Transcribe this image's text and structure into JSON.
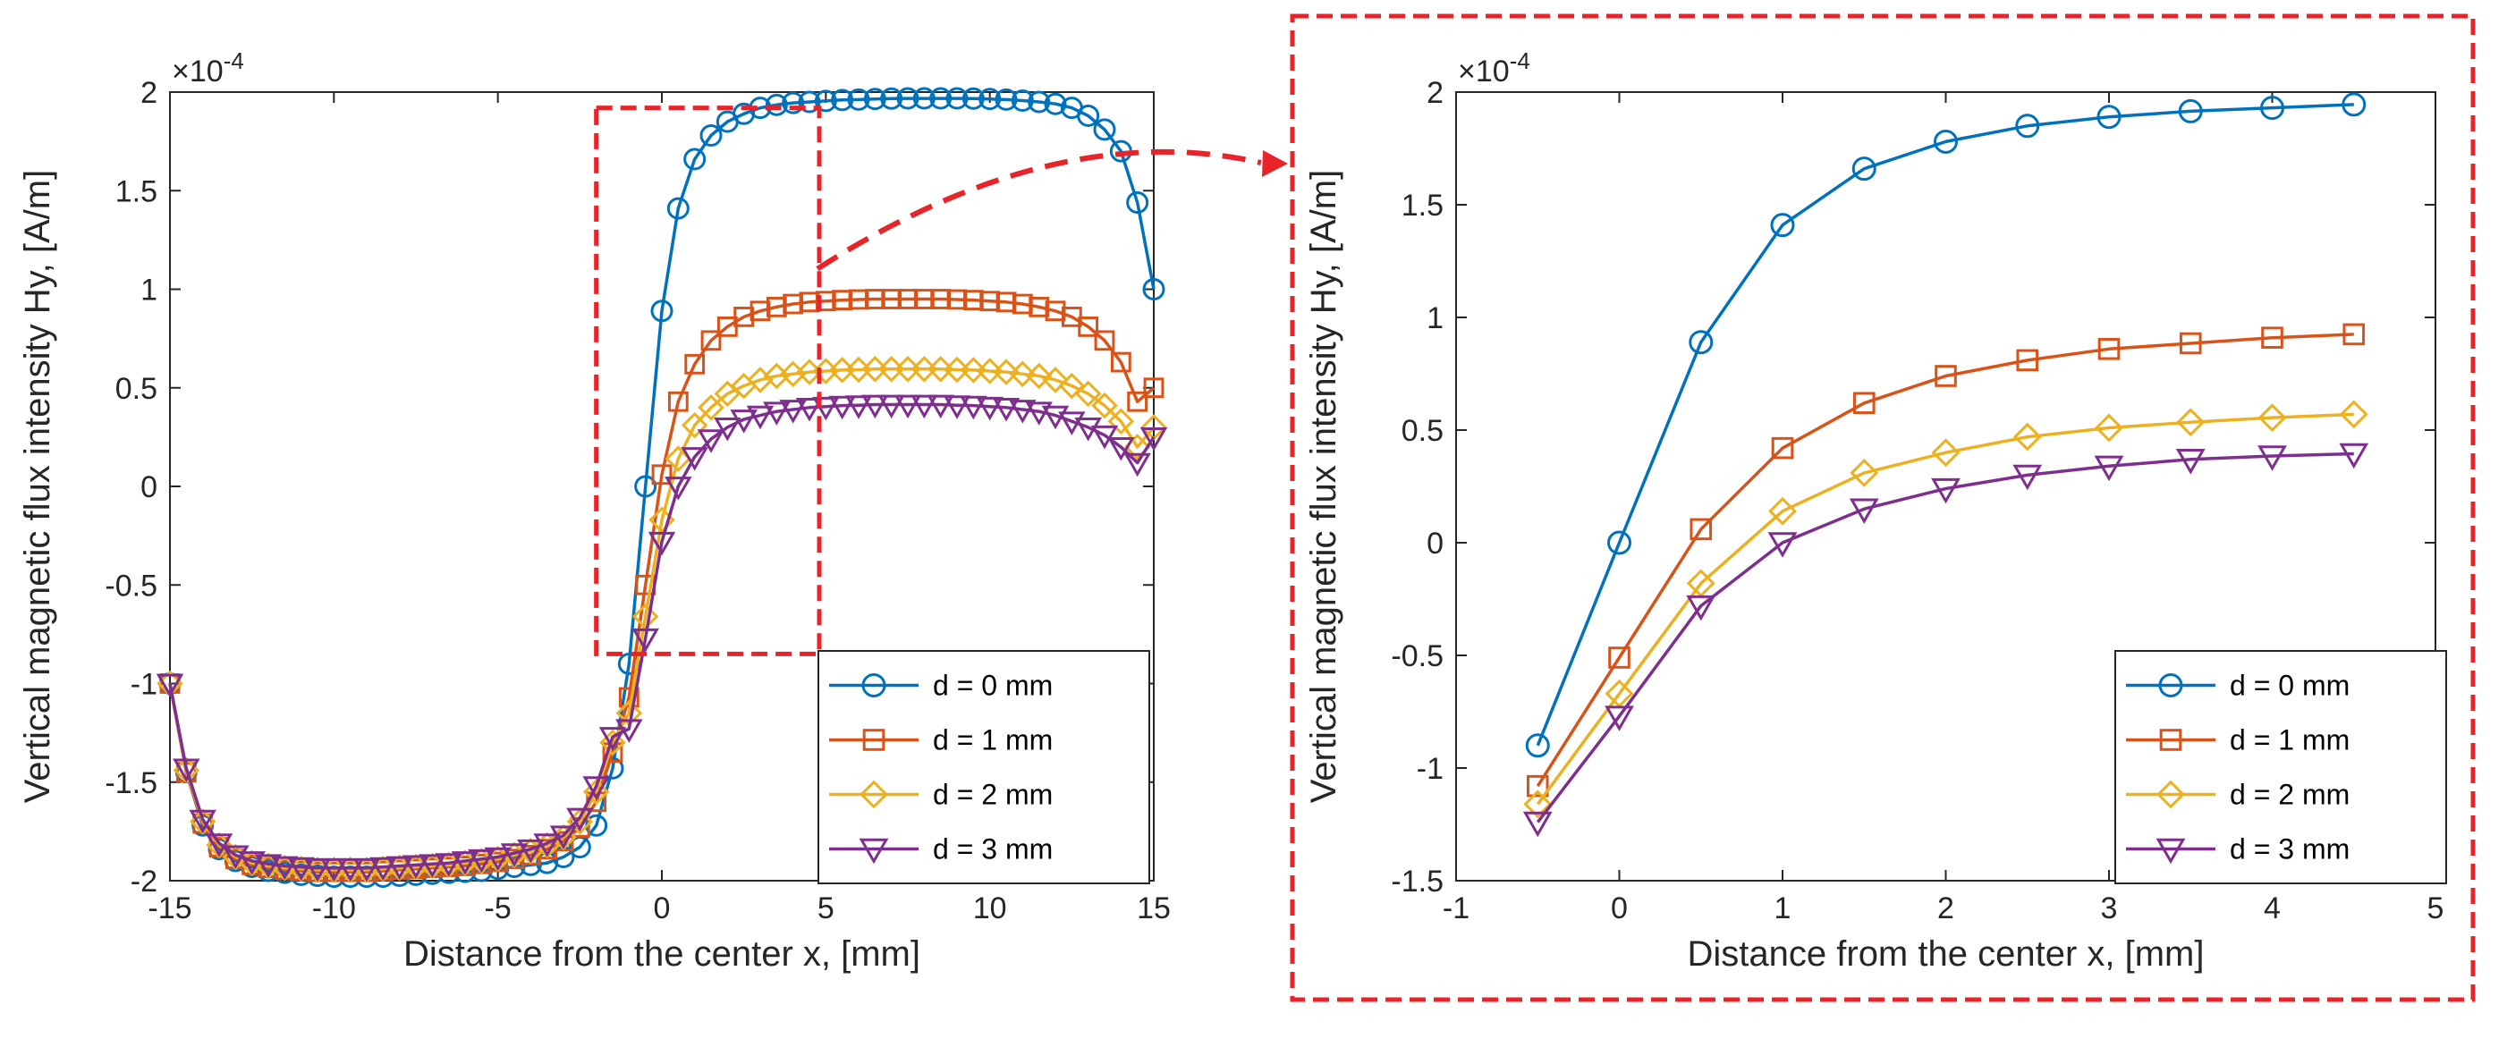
{
  "chart_data": [
    {
      "type": "line",
      "xlabel": "Distance from the center x, [mm]",
      "ylabel": "Vertical magnetic flux intensity Hy, [A/m]",
      "y_multiplier_label": "×10",
      "y_exponent": "-4",
      "xlim": [
        -15,
        15
      ],
      "ylim": [
        -2,
        2
      ],
      "xticks": [
        "-15",
        "-10",
        "-5",
        "0",
        "5",
        "10",
        "15"
      ],
      "yticks": [
        "2",
        "1.5",
        "1",
        "0.5",
        "0",
        "-0.5",
        "-1",
        "-1.5",
        "-2"
      ],
      "x_step": 0.5,
      "x_start": -15,
      "legend_position": "bottom-right",
      "series": [
        {
          "name": "d = 0 mm",
          "color": "#0072BD",
          "marker": "circle",
          "values": [
            -1.0,
            -1.45,
            -1.72,
            -1.84,
            -1.9,
            -1.93,
            -1.95,
            -1.96,
            -1.97,
            -1.975,
            -1.98,
            -1.98,
            -1.98,
            -1.98,
            -1.975,
            -1.97,
            -1.965,
            -1.96,
            -1.955,
            -1.95,
            -1.94,
            -1.93,
            -1.92,
            -1.91,
            -1.88,
            -1.83,
            -1.72,
            -1.43,
            -0.9,
            0.0,
            0.89,
            1.41,
            1.66,
            1.78,
            1.85,
            1.89,
            1.92,
            1.935,
            1.945,
            1.95,
            1.955,
            1.96,
            1.962,
            1.965,
            1.967,
            1.968,
            1.968,
            1.968,
            1.968,
            1.967,
            1.965,
            1.962,
            1.957,
            1.95,
            1.94,
            1.92,
            1.88,
            1.81,
            1.7,
            1.44,
            1.0
          ]
        },
        {
          "name": "d = 1 mm",
          "color": "#D95319",
          "marker": "square",
          "values": [
            -1.0,
            -1.45,
            -1.71,
            -1.83,
            -1.89,
            -1.92,
            -1.935,
            -1.945,
            -1.95,
            -1.955,
            -1.955,
            -1.955,
            -1.955,
            -1.95,
            -1.945,
            -1.94,
            -1.935,
            -1.93,
            -1.925,
            -1.915,
            -1.905,
            -1.89,
            -1.87,
            -1.84,
            -1.8,
            -1.73,
            -1.6,
            -1.35,
            -1.07,
            -0.5,
            0.06,
            0.43,
            0.62,
            0.74,
            0.81,
            0.86,
            0.89,
            0.91,
            0.925,
            0.935,
            0.94,
            0.945,
            0.948,
            0.95,
            0.95,
            0.95,
            0.95,
            0.95,
            0.948,
            0.945,
            0.94,
            0.935,
            0.925,
            0.91,
            0.89,
            0.86,
            0.81,
            0.74,
            0.63,
            0.43,
            0.5
          ]
        },
        {
          "name": "d = 2 mm",
          "color": "#EDB120",
          "marker": "diamond",
          "values": [
            -1.0,
            -1.44,
            -1.7,
            -1.82,
            -1.88,
            -1.91,
            -1.925,
            -1.935,
            -1.94,
            -1.945,
            -1.945,
            -1.945,
            -1.945,
            -1.94,
            -1.935,
            -1.93,
            -1.925,
            -1.92,
            -1.91,
            -1.9,
            -1.89,
            -1.87,
            -1.85,
            -1.82,
            -1.78,
            -1.7,
            -1.55,
            -1.3,
            -1.15,
            -0.66,
            -0.17,
            0.14,
            0.31,
            0.4,
            0.47,
            0.51,
            0.54,
            0.56,
            0.57,
            0.58,
            0.585,
            0.59,
            0.592,
            0.595,
            0.595,
            0.595,
            0.595,
            0.595,
            0.592,
            0.59,
            0.585,
            0.58,
            0.57,
            0.56,
            0.54,
            0.51,
            0.47,
            0.41,
            0.33,
            0.2,
            0.3
          ]
        },
        {
          "name": "d = 3 mm",
          "color": "#7E2F8E",
          "marker": "triangle",
          "values": [
            -1.0,
            -1.43,
            -1.69,
            -1.81,
            -1.87,
            -1.9,
            -1.915,
            -1.925,
            -1.93,
            -1.935,
            -1.935,
            -1.935,
            -1.935,
            -1.93,
            -1.925,
            -1.92,
            -1.915,
            -1.91,
            -1.9,
            -1.89,
            -1.88,
            -1.86,
            -1.84,
            -1.81,
            -1.77,
            -1.68,
            -1.52,
            -1.27,
            -1.23,
            -0.77,
            -0.28,
            0.0,
            0.15,
            0.24,
            0.3,
            0.34,
            0.36,
            0.38,
            0.39,
            0.4,
            0.405,
            0.41,
            0.412,
            0.415,
            0.415,
            0.415,
            0.415,
            0.415,
            0.412,
            0.41,
            0.405,
            0.4,
            0.39,
            0.38,
            0.36,
            0.33,
            0.3,
            0.26,
            0.2,
            0.12,
            0.25
          ]
        }
      ]
    },
    {
      "type": "line",
      "xlabel": "Distance from the center x, [mm]",
      "ylabel": "Vertical magnetic flux intensity Hy, [A/m]",
      "y_multiplier_label": "×10",
      "y_exponent": "-4",
      "xlim": [
        -1,
        5
      ],
      "ylim": [
        -1.5,
        2
      ],
      "xticks": [
        "-1",
        "0",
        "1",
        "2",
        "3",
        "4",
        "5"
      ],
      "yticks": [
        "2",
        "1.5",
        "1",
        "0.5",
        "0",
        "-0.5",
        "-1",
        "-1.5"
      ],
      "x": [
        -0.5,
        0,
        0.5,
        1,
        1.5,
        2,
        2.5,
        3,
        3.5,
        4,
        4.5
      ],
      "legend_position": "bottom-right",
      "series": [
        {
          "name": "d = 0 mm",
          "color": "#0072BD",
          "marker": "circle",
          "values": [
            -0.9,
            0.0,
            0.89,
            1.41,
            1.66,
            1.78,
            1.85,
            1.89,
            1.915,
            1.93,
            1.945
          ]
        },
        {
          "name": "d = 1 mm",
          "color": "#D95319",
          "marker": "square",
          "values": [
            -1.08,
            -0.51,
            0.06,
            0.42,
            0.62,
            0.74,
            0.81,
            0.86,
            0.885,
            0.91,
            0.925
          ]
        },
        {
          "name": "d = 2 mm",
          "color": "#EDB120",
          "marker": "diamond",
          "values": [
            -1.16,
            -0.67,
            -0.18,
            0.14,
            0.31,
            0.4,
            0.47,
            0.51,
            0.535,
            0.555,
            0.57
          ]
        },
        {
          "name": "d = 3 mm",
          "color": "#7E2F8E",
          "marker": "triangle",
          "values": [
            -1.24,
            -0.77,
            -0.28,
            0.0,
            0.15,
            0.24,
            0.3,
            0.34,
            0.37,
            0.385,
            0.395
          ]
        }
      ]
    }
  ],
  "annotations": {
    "zoom_box_color": "#E8242A",
    "zoom_box_x_range": [
      -2,
      4.8
    ],
    "zoom_box_y_range": [
      -0.85,
      1.92
    ]
  }
}
